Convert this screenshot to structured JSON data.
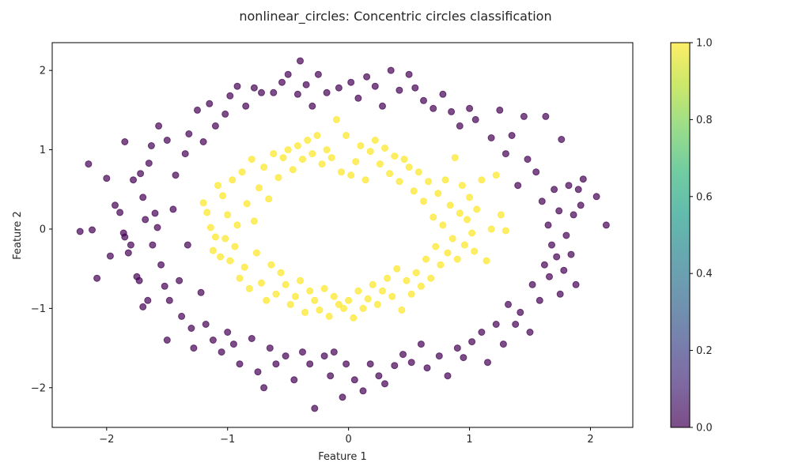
{
  "chart_data": {
    "type": "scatter",
    "title": "nonlinear_circles: Concentric circles classification",
    "xlabel": "Feature 1",
    "ylabel": "Feature 2",
    "xlim": [
      -2.45,
      2.35
    ],
    "ylim": [
      -2.5,
      2.35
    ],
    "xticks": [
      -2,
      -1,
      0,
      1,
      2
    ],
    "yticks": [
      -2,
      -1,
      0,
      1,
      2
    ],
    "xtick_labels": [
      "−2",
      "−1",
      "0",
      "1",
      "2"
    ],
    "ytick_labels": [
      "−2",
      "−1",
      "0",
      "1",
      "2"
    ],
    "colormap": "viridis",
    "marker_alpha": 0.7,
    "colorbar": {
      "range": [
        0.0,
        1.0
      ],
      "ticks": [
        0.0,
        0.2,
        0.4,
        0.6,
        0.8,
        1.0
      ],
      "tick_labels": [
        "0.0",
        "0.2",
        "0.4",
        "0.6",
        "0.8",
        "1.0"
      ],
      "colors": [
        "#440154",
        "#482878",
        "#3e4989",
        "#31688e",
        "#26828e",
        "#1f9e89",
        "#35b779",
        "#6ece58",
        "#b5de2b",
        "#fde725"
      ]
    },
    "series": [
      {
        "class": 0,
        "color": "#440154",
        "points": [
          [
            -2.22,
            -0.03
          ],
          [
            -2.15,
            0.82
          ],
          [
            -2.12,
            -0.01
          ],
          [
            -2.08,
            -0.62
          ],
          [
            -2.0,
            0.64
          ],
          [
            -1.97,
            -0.34
          ],
          [
            -1.93,
            0.3
          ],
          [
            -1.89,
            0.21
          ],
          [
            -1.86,
            -0.05
          ],
          [
            -1.85,
            -0.1
          ],
          [
            -1.85,
            1.1
          ],
          [
            -1.82,
            -0.3
          ],
          [
            -1.8,
            -0.2
          ],
          [
            -1.78,
            0.62
          ],
          [
            -1.75,
            -0.6
          ],
          [
            -1.73,
            -0.65
          ],
          [
            -1.72,
            0.7
          ],
          [
            -1.7,
            0.4
          ],
          [
            -1.7,
            -0.98
          ],
          [
            -1.68,
            0.12
          ],
          [
            -1.66,
            -0.9
          ],
          [
            -1.65,
            0.83
          ],
          [
            -1.63,
            1.05
          ],
          [
            -1.62,
            -0.2
          ],
          [
            -1.6,
            0.2
          ],
          [
            -1.58,
            0.02
          ],
          [
            -1.57,
            1.3
          ],
          [
            -1.55,
            -0.45
          ],
          [
            -1.52,
            -0.72
          ],
          [
            -1.5,
            1.12
          ],
          [
            -1.5,
            -1.4
          ],
          [
            -1.48,
            -0.9
          ],
          [
            -1.45,
            0.25
          ],
          [
            -1.43,
            0.68
          ],
          [
            -1.4,
            -0.65
          ],
          [
            -1.38,
            -1.1
          ],
          [
            -1.35,
            0.95
          ],
          [
            -1.33,
            -0.2
          ],
          [
            -1.32,
            1.2
          ],
          [
            -1.3,
            -1.25
          ],
          [
            -1.28,
            -1.5
          ],
          [
            -1.25,
            1.5
          ],
          [
            -1.22,
            -0.8
          ],
          [
            -1.2,
            1.1
          ],
          [
            -1.18,
            -1.2
          ],
          [
            -1.15,
            1.58
          ],
          [
            -1.12,
            -1.4
          ],
          [
            -1.1,
            1.3
          ],
          [
            -1.05,
            -1.55
          ],
          [
            -1.02,
            1.45
          ],
          [
            -1.0,
            -1.3
          ],
          [
            -0.98,
            1.68
          ],
          [
            -0.95,
            -1.45
          ],
          [
            -0.92,
            1.8
          ],
          [
            -0.9,
            -1.7
          ],
          [
            -0.85,
            1.55
          ],
          [
            -0.8,
            -1.38
          ],
          [
            -0.78,
            1.78
          ],
          [
            -0.75,
            -1.8
          ],
          [
            -0.72,
            1.72
          ],
          [
            -0.7,
            -2.0
          ],
          [
            -0.65,
            -1.5
          ],
          [
            -0.62,
            1.72
          ],
          [
            -0.6,
            -1.7
          ],
          [
            -0.55,
            1.85
          ],
          [
            -0.52,
            -1.6
          ],
          [
            -0.5,
            1.95
          ],
          [
            -0.45,
            -1.9
          ],
          [
            -0.42,
            1.7
          ],
          [
            -0.4,
            2.12
          ],
          [
            -0.38,
            -1.55
          ],
          [
            -0.35,
            1.82
          ],
          [
            -0.32,
            -1.7
          ],
          [
            -0.3,
            1.55
          ],
          [
            -0.28,
            -2.26
          ],
          [
            -0.25,
            1.95
          ],
          [
            -0.2,
            -1.6
          ],
          [
            -0.18,
            1.72
          ],
          [
            -0.15,
            -1.85
          ],
          [
            -0.12,
            -1.55
          ],
          [
            -0.08,
            1.78
          ],
          [
            -0.05,
            -2.12
          ],
          [
            -0.02,
            -1.7
          ],
          [
            0.02,
            1.85
          ],
          [
            0.05,
            -1.9
          ],
          [
            0.08,
            1.65
          ],
          [
            0.12,
            -2.04
          ],
          [
            0.15,
            1.92
          ],
          [
            0.18,
            -1.7
          ],
          [
            0.22,
            1.8
          ],
          [
            0.25,
            -1.85
          ],
          [
            0.28,
            1.55
          ],
          [
            0.3,
            -1.95
          ],
          [
            0.35,
            2.0
          ],
          [
            0.38,
            -1.72
          ],
          [
            0.42,
            1.75
          ],
          [
            0.45,
            -1.58
          ],
          [
            0.5,
            1.95
          ],
          [
            0.52,
            -1.68
          ],
          [
            0.55,
            1.78
          ],
          [
            0.6,
            -1.45
          ],
          [
            0.62,
            1.62
          ],
          [
            0.65,
            -1.75
          ],
          [
            0.7,
            1.52
          ],
          [
            0.75,
            -1.6
          ],
          [
            0.78,
            1.7
          ],
          [
            0.82,
            -1.85
          ],
          [
            0.85,
            1.48
          ],
          [
            0.9,
            -1.5
          ],
          [
            0.92,
            1.3
          ],
          [
            0.95,
            -1.62
          ],
          [
            1.0,
            1.52
          ],
          [
            1.02,
            -1.42
          ],
          [
            1.05,
            1.38
          ],
          [
            1.1,
            -1.3
          ],
          [
            1.15,
            -1.68
          ],
          [
            1.18,
            1.15
          ],
          [
            1.22,
            -1.2
          ],
          [
            1.25,
            1.5
          ],
          [
            1.28,
            -1.45
          ],
          [
            1.3,
            0.95
          ],
          [
            1.32,
            -0.95
          ],
          [
            1.35,
            1.18
          ],
          [
            1.38,
            -1.2
          ],
          [
            1.4,
            0.55
          ],
          [
            1.42,
            -1.05
          ],
          [
            1.45,
            1.42
          ],
          [
            1.48,
            0.88
          ],
          [
            1.5,
            -1.3
          ],
          [
            1.52,
            -0.7
          ],
          [
            1.55,
            0.72
          ],
          [
            1.58,
            -0.9
          ],
          [
            1.6,
            0.35
          ],
          [
            1.62,
            -0.45
          ],
          [
            1.63,
            1.42
          ],
          [
            1.65,
            0.05
          ],
          [
            1.66,
            -0.6
          ],
          [
            1.68,
            -0.2
          ],
          [
            1.7,
            0.5
          ],
          [
            1.72,
            -0.35
          ],
          [
            1.74,
            0.23
          ],
          [
            1.75,
            -0.82
          ],
          [
            1.76,
            1.13
          ],
          [
            1.78,
            -0.52
          ],
          [
            1.8,
            -0.08
          ],
          [
            1.82,
            0.55
          ],
          [
            1.84,
            -0.32
          ],
          [
            1.86,
            0.18
          ],
          [
            1.88,
            -0.7
          ],
          [
            1.9,
            0.5
          ],
          [
            1.92,
            0.3
          ],
          [
            1.94,
            0.63
          ],
          [
            2.05,
            0.41
          ],
          [
            2.13,
            0.05
          ]
        ]
      },
      {
        "class": 1,
        "color": "#fde725",
        "points": [
          [
            -1.2,
            0.33
          ],
          [
            -1.17,
            0.21
          ],
          [
            -1.14,
            0.02
          ],
          [
            -1.12,
            -0.27
          ],
          [
            -1.1,
            -0.1
          ],
          [
            -1.08,
            0.55
          ],
          [
            -1.06,
            -0.35
          ],
          [
            -1.04,
            0.42
          ],
          [
            -1.02,
            -0.12
          ],
          [
            -1.0,
            0.18
          ],
          [
            -0.98,
            -0.4
          ],
          [
            -0.96,
            0.62
          ],
          [
            -0.94,
            -0.22
          ],
          [
            -0.92,
            0.05
          ],
          [
            -0.9,
            -0.62
          ],
          [
            -0.88,
            0.72
          ],
          [
            -0.86,
            -0.48
          ],
          [
            -0.84,
            0.32
          ],
          [
            -0.82,
            -0.75
          ],
          [
            -0.8,
            0.88
          ],
          [
            -0.78,
            0.1
          ],
          [
            -0.76,
            -0.3
          ],
          [
            -0.74,
            0.52
          ],
          [
            -0.72,
            -0.68
          ],
          [
            -0.7,
            0.78
          ],
          [
            -0.68,
            -0.9
          ],
          [
            -0.66,
            0.38
          ],
          [
            -0.64,
            -0.45
          ],
          [
            -0.62,
            0.95
          ],
          [
            -0.6,
            -0.82
          ],
          [
            -0.58,
            0.65
          ],
          [
            -0.56,
            -0.55
          ],
          [
            -0.54,
            0.9
          ],
          [
            -0.52,
            -0.7
          ],
          [
            -0.5,
            1.0
          ],
          [
            -0.48,
            -0.95
          ],
          [
            -0.46,
            0.75
          ],
          [
            -0.44,
            -0.85
          ],
          [
            -0.42,
            1.05
          ],
          [
            -0.4,
            -0.65
          ],
          [
            -0.38,
            0.88
          ],
          [
            -0.36,
            -1.05
          ],
          [
            -0.34,
            1.12
          ],
          [
            -0.32,
            -0.78
          ],
          [
            -0.3,
            0.95
          ],
          [
            -0.28,
            -0.9
          ],
          [
            -0.26,
            1.18
          ],
          [
            -0.24,
            -1.02
          ],
          [
            -0.22,
            0.82
          ],
          [
            -0.2,
            -0.75
          ],
          [
            -0.18,
            1.0
          ],
          [
            -0.16,
            -1.1
          ],
          [
            -0.14,
            0.9
          ],
          [
            -0.12,
            -0.85
          ],
          [
            -0.1,
            1.38
          ],
          [
            -0.08,
            -0.95
          ],
          [
            -0.06,
            0.72
          ],
          [
            -0.04,
            -1.0
          ],
          [
            -0.02,
            1.18
          ],
          [
            0.0,
            -0.9
          ],
          [
            0.02,
            0.68
          ],
          [
            0.04,
            -1.12
          ],
          [
            0.06,
            0.85
          ],
          [
            0.08,
            -0.78
          ],
          [
            0.1,
            1.05
          ],
          [
            0.12,
            -1.0
          ],
          [
            0.14,
            0.62
          ],
          [
            0.16,
            -0.88
          ],
          [
            0.18,
            0.98
          ],
          [
            0.2,
            -0.7
          ],
          [
            0.22,
            1.12
          ],
          [
            0.24,
            -0.95
          ],
          [
            0.26,
            0.82
          ],
          [
            0.28,
            -0.78
          ],
          [
            0.3,
            1.02
          ],
          [
            0.32,
            -0.62
          ],
          [
            0.34,
            0.7
          ],
          [
            0.36,
            -0.85
          ],
          [
            0.38,
            0.92
          ],
          [
            0.4,
            -0.5
          ],
          [
            0.42,
            0.6
          ],
          [
            0.44,
            -1.02
          ],
          [
            0.46,
            0.88
          ],
          [
            0.48,
            -0.65
          ],
          [
            0.5,
            0.78
          ],
          [
            0.52,
            -0.82
          ],
          [
            0.54,
            0.48
          ],
          [
            0.56,
            -0.55
          ],
          [
            0.58,
            0.72
          ],
          [
            0.6,
            -0.72
          ],
          [
            0.62,
            0.35
          ],
          [
            0.64,
            -0.38
          ],
          [
            0.66,
            0.6
          ],
          [
            0.68,
            -0.62
          ],
          [
            0.7,
            0.15
          ],
          [
            0.72,
            -0.22
          ],
          [
            0.74,
            0.45
          ],
          [
            0.76,
            -0.45
          ],
          [
            0.78,
            0.05
          ],
          [
            0.8,
            0.62
          ],
          [
            0.82,
            -0.3
          ],
          [
            0.84,
            0.3
          ],
          [
            0.86,
            -0.12
          ],
          [
            0.88,
            0.9
          ],
          [
            0.9,
            -0.38
          ],
          [
            0.92,
            0.2
          ],
          [
            0.94,
            0.55
          ],
          [
            0.96,
            -0.2
          ],
          [
            0.98,
            0.12
          ],
          [
            1.0,
            0.4
          ],
          [
            1.02,
            -0.05
          ],
          [
            1.04,
            -0.28
          ],
          [
            1.06,
            0.25
          ],
          [
            1.1,
            0.62
          ],
          [
            1.14,
            -0.4
          ],
          [
            1.18,
            0.0
          ],
          [
            1.22,
            0.68
          ],
          [
            1.26,
            0.18
          ],
          [
            1.3,
            -0.02
          ]
        ]
      }
    ]
  }
}
